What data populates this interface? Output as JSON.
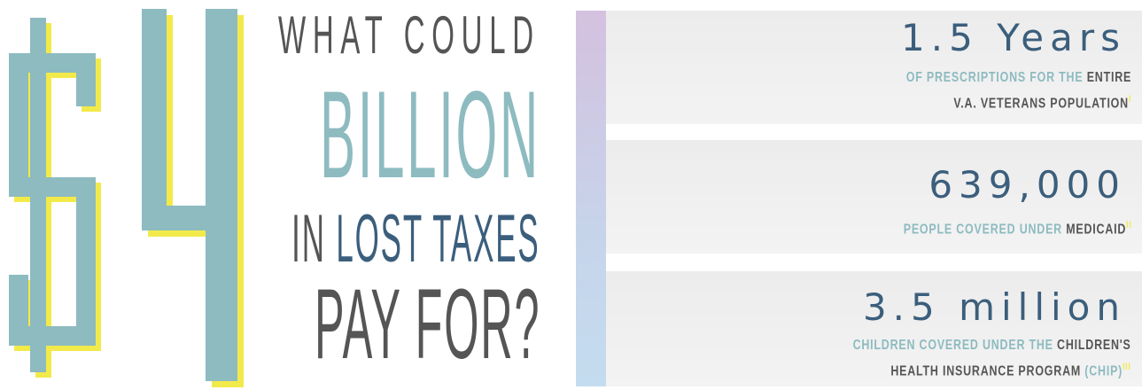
{
  "headline": {
    "amount_symbol": "$",
    "amount_digit": "4",
    "line1": "WHAT COULD",
    "line2": "BILLION",
    "line3_a": "IN ",
    "line3_b": "LOST TAXES",
    "line4": "PAY FOR?"
  },
  "facts": [
    {
      "figure": "1.5 Years",
      "desc_a": "OF PRESCRIPTIONS FOR THE ",
      "desc_b": "ENTIRE",
      "desc_c": "V.A. VETERANS POPULATION",
      "ref": "I"
    },
    {
      "figure": "639,000",
      "desc_a": "PEOPLE COVERED UNDER ",
      "desc_b": "MEDICAID",
      "ref": "II"
    },
    {
      "figure": "3.5 million",
      "desc_a": "CHILDREN COVERED UNDER THE ",
      "desc_b": "CHILDREN'S",
      "desc_c": "HEALTH INSURANCE PROGRAM ",
      "desc_d": "(CHIP)",
      "ref": "III"
    }
  ],
  "colors": {
    "teal": "#8dbbc0",
    "navy": "#3b5e7c",
    "grey": "#555555",
    "yellow": "#f2ea4a",
    "panel": "#efefef"
  }
}
